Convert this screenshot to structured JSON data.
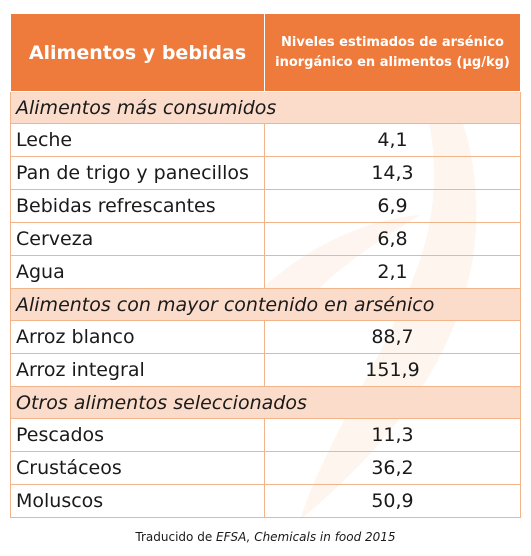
{
  "table": {
    "header": {
      "col1": "Alimentos y bebidas",
      "col2_line1": "Niveles estimados de arsénico",
      "col2_line2": "inorgánico en alimentos (µg/kg)"
    },
    "sections": [
      {
        "title": "Alimentos más consumidos",
        "rows": [
          {
            "name": "Leche",
            "value": "4,1"
          },
          {
            "name": "Pan de trigo y panecillos",
            "value": "14,3"
          },
          {
            "name": "Bebidas refrescantes",
            "value": "6,9"
          },
          {
            "name": "Cerveza",
            "value": "6,8"
          },
          {
            "name": "Agua",
            "value": "2,1"
          }
        ]
      },
      {
        "title": "Alimentos con mayor contenido en arsénico",
        "rows": [
          {
            "name": "Arroz blanco",
            "value": "88,7"
          },
          {
            "name": "Arroz integral",
            "value": "151,9"
          }
        ]
      },
      {
        "title": "Otros alimentos seleccionados",
        "rows": [
          {
            "name": "Pescados",
            "value": "11,3"
          },
          {
            "name": "Crustáceos",
            "value": "36,2"
          },
          {
            "name": "Moluscos",
            "value": "50,9"
          }
        ]
      }
    ]
  },
  "caption": {
    "prefix": "Traducido de ",
    "source": "EFSA, Chemicals in food 2015"
  },
  "colors": {
    "header_bg": "#ee7b3c",
    "section_bg": "#fbdccb",
    "border": "#f2b48a"
  }
}
